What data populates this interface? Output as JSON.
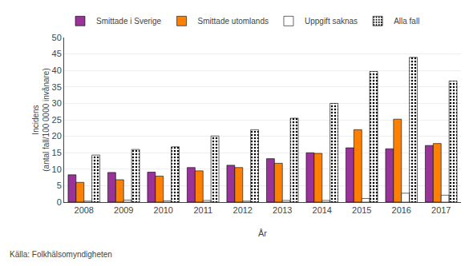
{
  "chart_data": {
    "type": "bar",
    "categories": [
      "2008",
      "2009",
      "2010",
      "2011",
      "2012",
      "2013",
      "2014",
      "2015",
      "2016",
      "2017"
    ],
    "series": [
      {
        "name": "Smittade i Sverige",
        "color": "#993399",
        "values": [
          8.3,
          9.0,
          9.1,
          10.5,
          11.2,
          13.2,
          15.0,
          16.5,
          16.2,
          17.2
        ]
      },
      {
        "name": "Smittade utomlands",
        "color": "#FF8000",
        "values": [
          6.0,
          6.8,
          7.9,
          9.5,
          10.5,
          11.8,
          14.8,
          22.0,
          25.2,
          17.8
        ]
      },
      {
        "name": "Uppgift saknas",
        "color": "#FFFFFF",
        "values": [
          0.3,
          0.6,
          0.4,
          0.5,
          0.3,
          0.5,
          0.5,
          1.1,
          2.7,
          2.1
        ]
      },
      {
        "name": "Alla fall",
        "color": "#FFFFFF",
        "marker": "dots",
        "values": [
          14.3,
          16.0,
          16.8,
          20.1,
          22.0,
          25.5,
          30.0,
          39.7,
          44.0,
          36.8
        ]
      }
    ],
    "xlabel": "År",
    "ylabel": "Incidens\n(antal fall/100 0000 invånare)",
    "ylim": [
      0,
      50
    ],
    "yticks": [
      0,
      5,
      10,
      15,
      20,
      25,
      30,
      35,
      40,
      45,
      50
    ],
    "grid": true,
    "legend": "top",
    "annotations": [
      "Källa: Folkhälsomyndigheten"
    ]
  }
}
